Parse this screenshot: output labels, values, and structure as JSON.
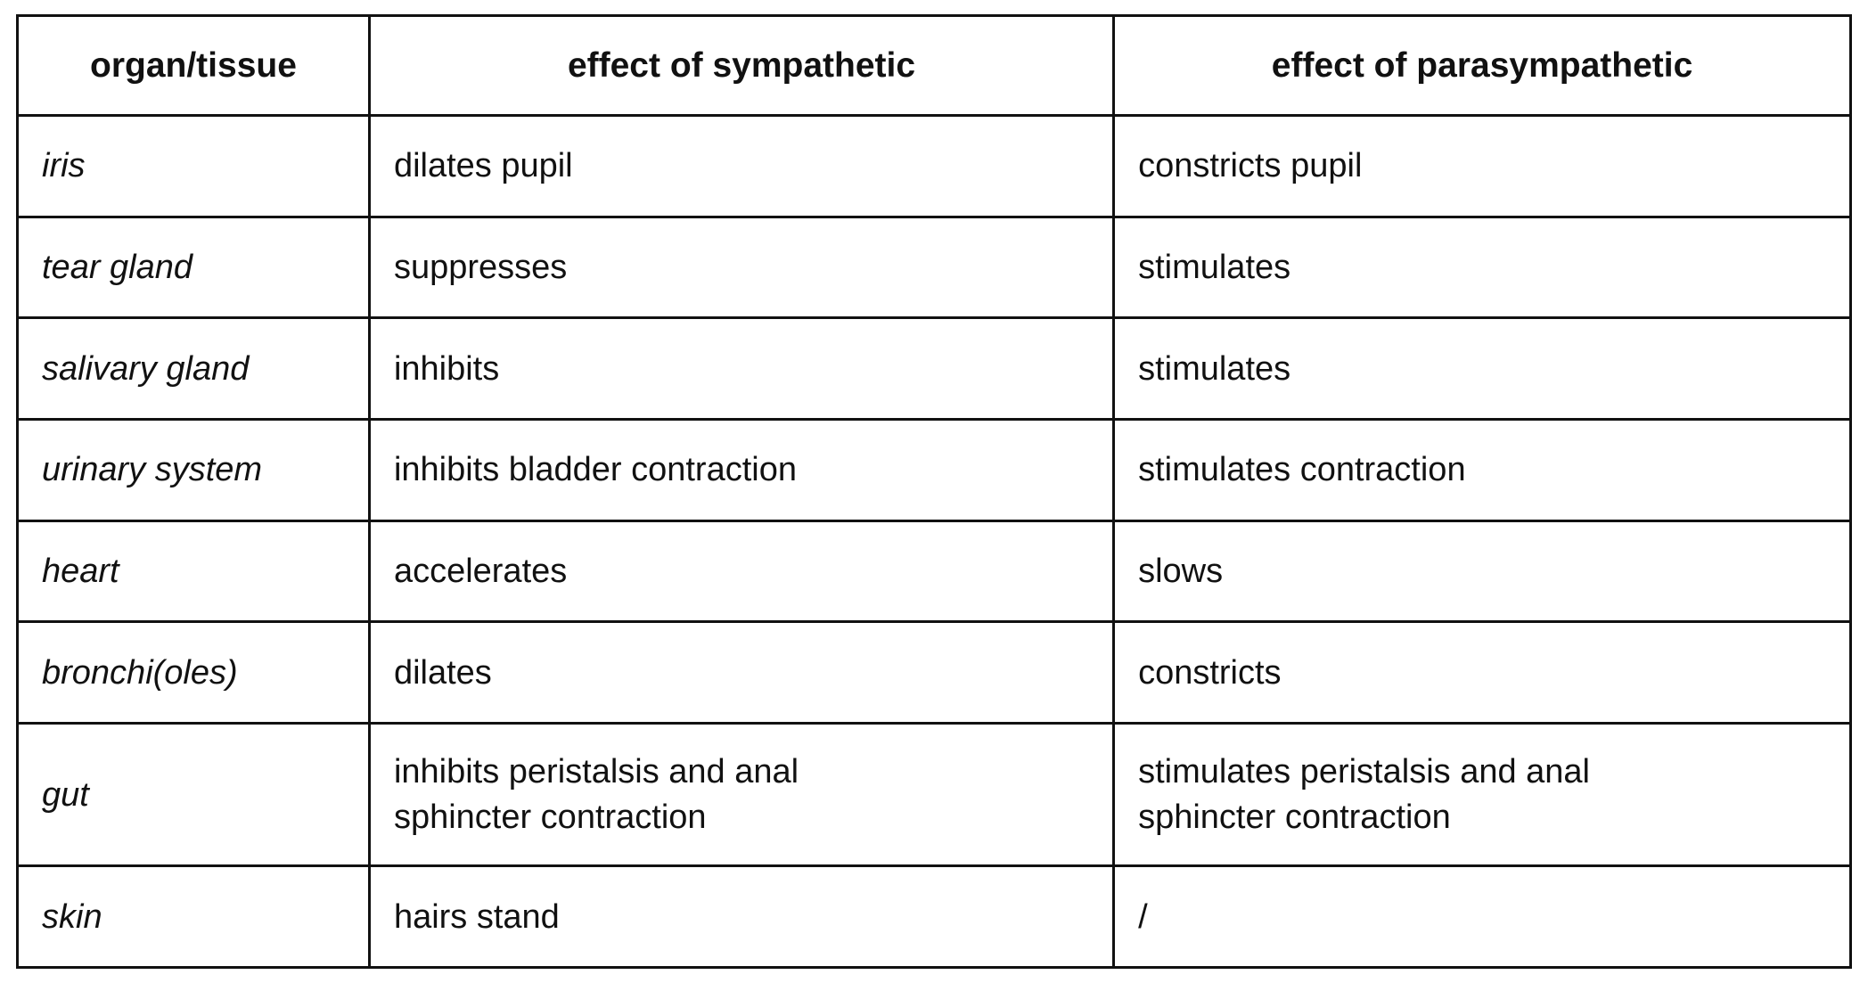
{
  "colors": {
    "background": "#ffffff",
    "border": "#111111",
    "text": "#111111"
  },
  "table": {
    "headers": {
      "organ": "organ/tissue",
      "sympathetic": "effect of sympathetic",
      "parasympathetic": "effect of parasympathetic"
    },
    "rows": [
      {
        "organ": "iris",
        "sympathetic": "dilates pupil",
        "parasympathetic": "constricts pupil"
      },
      {
        "organ": "tear gland",
        "sympathetic": "suppresses",
        "parasympathetic": "stimulates"
      },
      {
        "organ": "salivary gland",
        "sympathetic": "inhibits",
        "parasympathetic": "stimulates"
      },
      {
        "organ": "urinary system",
        "sympathetic": "inhibits bladder contraction",
        "parasympathetic": "stimulates contraction"
      },
      {
        "organ": "heart",
        "sympathetic": "accelerates",
        "parasympathetic": "slows"
      },
      {
        "organ": "bronchi(oles)",
        "sympathetic": "dilates",
        "parasympathetic": "constricts"
      },
      {
        "organ": "gut",
        "sympathetic": "inhibits peristalsis and anal\nsphincter contraction",
        "parasympathetic": "stimulates peristalsis and anal\nsphincter contraction"
      },
      {
        "organ": "skin",
        "sympathetic": "hairs stand",
        "parasympathetic": "/"
      }
    ]
  }
}
